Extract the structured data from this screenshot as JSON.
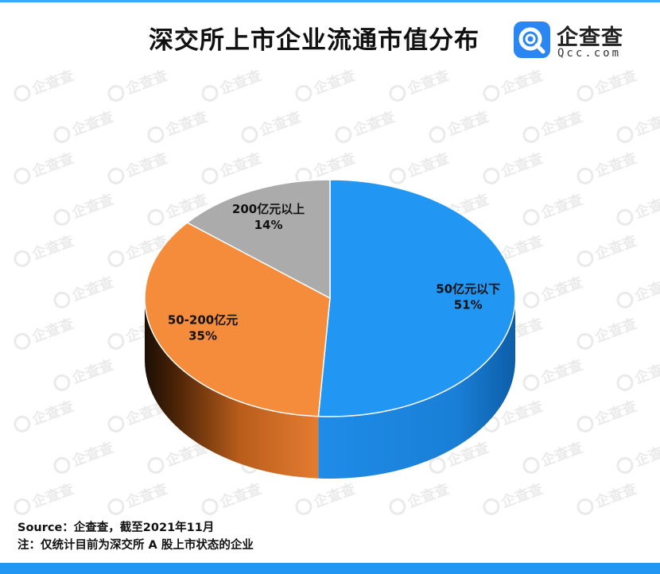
{
  "title": "深交所上市企业流通市值分布",
  "logo": {
    "name": "企查查",
    "sub": "Qcc.com",
    "icon": "qcc-logo-icon"
  },
  "watermark_text": "企查查",
  "chart_data": {
    "type": "pie",
    "style": "3d",
    "title": "深交所上市企业流通市值分布",
    "slices": [
      {
        "label": "50亿元以下",
        "value": 51,
        "value_label": "51%",
        "color": "#2196F3"
      },
      {
        "label": "50-200亿元",
        "value": 35,
        "value_label": "35%",
        "color": "#F58C3C"
      },
      {
        "label": "200亿元以上",
        "value": 14,
        "value_label": "14%",
        "color": "#ABABAB"
      }
    ]
  },
  "footer": {
    "source": "Source：企查查，截至2021年11月",
    "note": "注：仅统计目前为深交所 A 股上市状态的企业"
  }
}
